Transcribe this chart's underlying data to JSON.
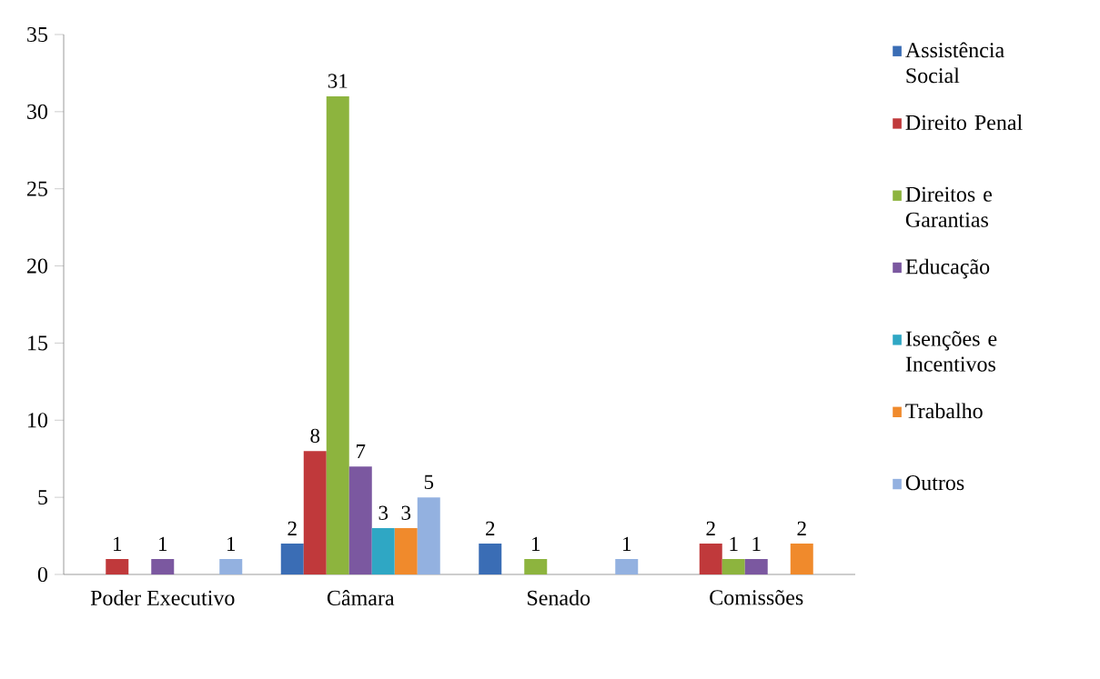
{
  "chart_data": {
    "type": "bar",
    "categories": [
      "Poder Executivo",
      "Câmara",
      "Senado",
      "Comissões"
    ],
    "series": [
      {
        "name": "Assistência Social",
        "color": "#3a6db5",
        "values": [
          null,
          2,
          2,
          null
        ]
      },
      {
        "name": "Direito Penal",
        "color": "#c0393b",
        "values": [
          1,
          8,
          null,
          2
        ]
      },
      {
        "name": "Direitos e Garantias",
        "color": "#8db43e",
        "values": [
          null,
          31,
          1,
          1
        ]
      },
      {
        "name": "Educação",
        "color": "#7b58a0",
        "values": [
          1,
          7,
          null,
          1
        ]
      },
      {
        "name": "Isenções e Incentivos",
        "color": "#2fa7c4",
        "values": [
          null,
          3,
          null,
          null
        ]
      },
      {
        "name": "Trabalho",
        "color": "#f08a2c",
        "values": [
          null,
          3,
          null,
          2
        ]
      },
      {
        "name": "Outros",
        "color": "#93b1e0",
        "values": [
          1,
          5,
          1,
          null
        ]
      }
    ],
    "ylim": [
      0,
      35
    ],
    "yticks": [
      0,
      5,
      10,
      15,
      20,
      25,
      30,
      35
    ],
    "grid": false,
    "legend": "right",
    "data_labels": true
  }
}
